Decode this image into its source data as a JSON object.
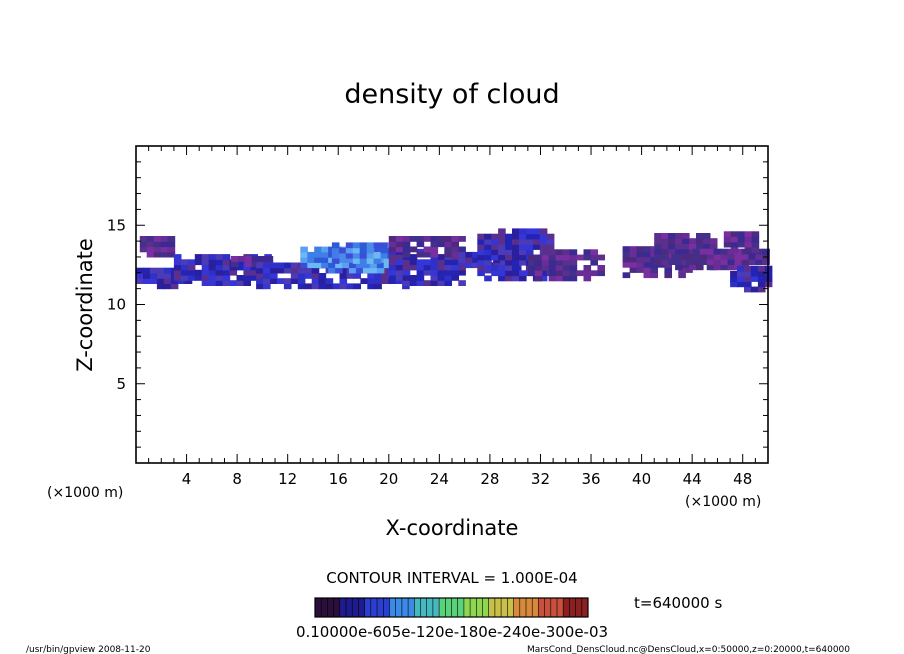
{
  "chart_data": {
    "type": "heatmap",
    "title": "density of cloud",
    "xlabel": "X-coordinate",
    "ylabel": "Z-coordinate",
    "x_unit": "(×1000 m)",
    "y_unit": "(×1000 m)",
    "xlim": [
      0,
      50
    ],
    "ylim": [
      0,
      20
    ],
    "x_ticks": [
      4,
      8,
      12,
      16,
      20,
      24,
      28,
      32,
      36,
      40,
      44,
      48
    ],
    "y_ticks": [
      5,
      10,
      15
    ],
    "grid": false,
    "contour_interval_text": "CONTOUR INTERVAL = 1.000E-04",
    "time_text": "t=640000 s",
    "colorbar": {
      "labels_text": "0.10000e-605e-120e-180e-240e-300e-03",
      "colors": [
        "#2a0e3c",
        "#1e1b8e",
        "#2a3fd0",
        "#3a8ae6",
        "#46b8c0",
        "#5ad27a",
        "#8ed652",
        "#c8c04a",
        "#d88a3c",
        "#c8503c",
        "#8a2020"
      ]
    },
    "cloud_regions": [
      {
        "x": [
          0.3,
          3.0
        ],
        "z": [
          13.0,
          14.2
        ],
        "level": "low"
      },
      {
        "x": [
          0.0,
          4.5
        ],
        "z": [
          11.0,
          12.3
        ],
        "level": "mid"
      },
      {
        "x": [
          3.0,
          10.5
        ],
        "z": [
          11.2,
          12.9
        ],
        "level": "mid"
      },
      {
        "x": [
          7.5,
          10.5
        ],
        "z": [
          12.4,
          13.0
        ],
        "level": "low"
      },
      {
        "x": [
          9.5,
          21.5
        ],
        "z": [
          11.0,
          12.6
        ],
        "level": "mid"
      },
      {
        "x": [
          13.0,
          21.0
        ],
        "z": [
          12.0,
          13.4
        ],
        "level": "high"
      },
      {
        "x": [
          15.5,
          20.5
        ],
        "z": [
          12.6,
          13.8
        ],
        "level": "high"
      },
      {
        "x": [
          20.0,
          26.0
        ],
        "z": [
          11.2,
          13.3
        ],
        "level": "mid"
      },
      {
        "x": [
          20.0,
          26.0
        ],
        "z": [
          13.0,
          14.3
        ],
        "level": "low"
      },
      {
        "x": [
          25.5,
          30.0
        ],
        "z": [
          12.0,
          13.2
        ],
        "level": "mid"
      },
      {
        "x": [
          27.0,
          33.0
        ],
        "z": [
          11.5,
          14.6
        ],
        "level": "mid"
      },
      {
        "x": [
          31.0,
          37.0
        ],
        "z": [
          11.5,
          13.2
        ],
        "level": "low"
      },
      {
        "x": [
          38.5,
          43.5
        ],
        "z": [
          11.7,
          13.6
        ],
        "level": "low"
      },
      {
        "x": [
          41.0,
          45.5
        ],
        "z": [
          12.2,
          14.5
        ],
        "level": "low"
      },
      {
        "x": [
          43.5,
          50.0
        ],
        "z": [
          12.2,
          13.3
        ],
        "level": "low"
      },
      {
        "x": [
          46.5,
          49.0
        ],
        "z": [
          13.3,
          14.4
        ],
        "level": "low"
      },
      {
        "x": [
          47.0,
          50.0
        ],
        "z": [
          10.8,
          12.3
        ],
        "level": "mid"
      }
    ]
  },
  "footer": {
    "left": "/usr/bin/gpview  2008-11-20",
    "right": "MarsCond_DensCloud.nc@DensCloud,x=0:50000,z=0:20000,t=640000"
  }
}
